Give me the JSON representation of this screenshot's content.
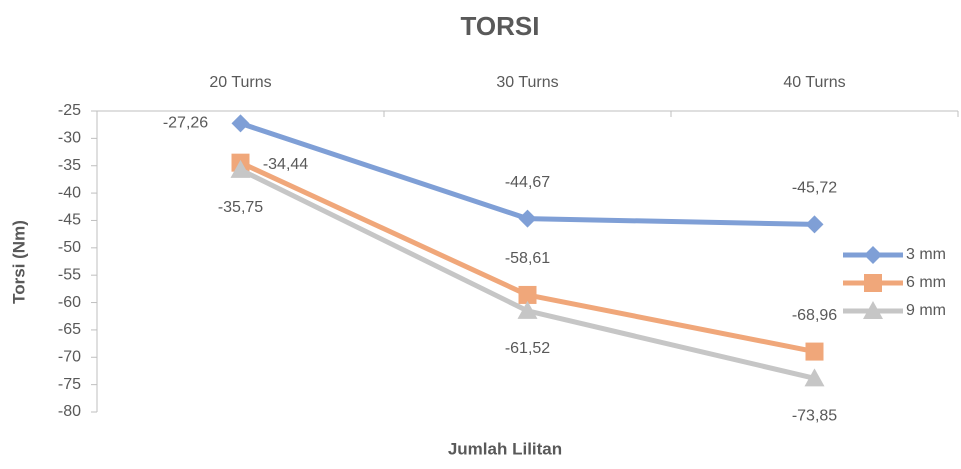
{
  "chart_data": {
    "type": "line",
    "title": "TORSI",
    "x_axis_label": "Jumlah Lilitan",
    "y_axis_label": "Torsi (Nm)",
    "categories": [
      "20 Turns",
      "30 Turns",
      "40 Turns"
    ],
    "series": [
      {
        "name": "3 mm",
        "color": "#7f9fd6",
        "marker": "diamond",
        "values": [
          -27.26,
          -44.67,
          -45.72
        ],
        "value_labels": [
          "-27,26",
          "-44,67",
          "-45,72"
        ]
      },
      {
        "name": "6 mm",
        "color": "#f0a77a",
        "marker": "square",
        "values": [
          -34.44,
          -58.61,
          -68.96
        ],
        "value_labels": [
          "-34,44",
          "-58,61",
          "-68,96"
        ]
      },
      {
        "name": "9 mm",
        "color": "#c6c6c6",
        "marker": "triangle",
        "values": [
          -35.75,
          -61.52,
          -73.85
        ],
        "value_labels": [
          "-35,75",
          "-61,52",
          "-73,85"
        ]
      }
    ],
    "ylim": [
      -80,
      -25
    ],
    "yticks": [
      -25,
      -30,
      -35,
      -40,
      -45,
      -50,
      -55,
      -60,
      -65,
      -70,
      -75,
      -80
    ],
    "legend": "right"
  }
}
